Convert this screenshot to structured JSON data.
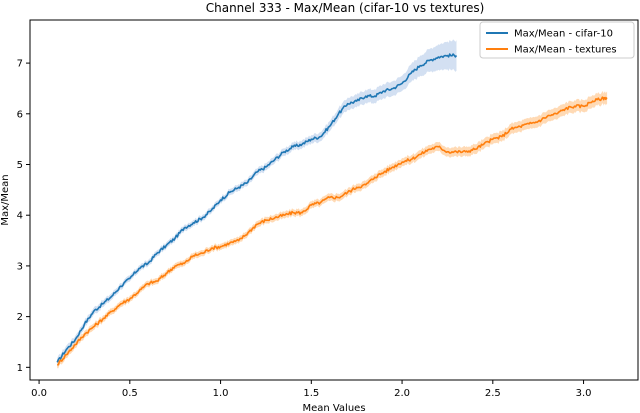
{
  "chart_data": {
    "type": "line",
    "title": "Channel 333 - Max/Mean (cifar-10 vs textures)",
    "xlabel": "Mean Values",
    "ylabel": "Max/Mean",
    "xlim": [
      -0.05,
      3.3
    ],
    "ylim": [
      0.75,
      7.85
    ],
    "xticks": [
      "0.0",
      "0.5",
      "1.0",
      "1.5",
      "2.0",
      "2.5",
      "3.0"
    ],
    "xtick_values": [
      0.0,
      0.5,
      1.0,
      1.5,
      2.0,
      2.5,
      3.0
    ],
    "yticks": [
      "1",
      "2",
      "3",
      "4",
      "5",
      "6",
      "7"
    ],
    "ytick_values": [
      1,
      2,
      3,
      4,
      5,
      6,
      7
    ],
    "grid": false,
    "legend_position": "top-right",
    "series": [
      {
        "name": "Max/Mean - cifar-10",
        "color": "#1f77b4",
        "band_color": "#aec7e8",
        "points": [
          [
            0.1,
            1.1
          ],
          [
            0.15,
            1.35
          ],
          [
            0.2,
            1.55
          ],
          [
            0.25,
            1.85
          ],
          [
            0.3,
            2.1
          ],
          [
            0.35,
            2.25
          ],
          [
            0.4,
            2.4
          ],
          [
            0.45,
            2.6
          ],
          [
            0.5,
            2.75
          ],
          [
            0.55,
            2.95
          ],
          [
            0.6,
            3.05
          ],
          [
            0.65,
            3.25
          ],
          [
            0.7,
            3.4
          ],
          [
            0.75,
            3.55
          ],
          [
            0.8,
            3.75
          ],
          [
            0.85,
            3.85
          ],
          [
            0.9,
            3.95
          ],
          [
            0.95,
            4.1
          ],
          [
            1.0,
            4.3
          ],
          [
            1.05,
            4.45
          ],
          [
            1.1,
            4.55
          ],
          [
            1.15,
            4.65
          ],
          [
            1.2,
            4.85
          ],
          [
            1.25,
            4.95
          ],
          [
            1.3,
            5.1
          ],
          [
            1.35,
            5.25
          ],
          [
            1.4,
            5.35
          ],
          [
            1.45,
            5.4
          ],
          [
            1.5,
            5.5
          ],
          [
            1.55,
            5.55
          ],
          [
            1.6,
            5.75
          ],
          [
            1.65,
            6.0
          ],
          [
            1.7,
            6.2
          ],
          [
            1.75,
            6.25
          ],
          [
            1.8,
            6.35
          ],
          [
            1.85,
            6.35
          ],
          [
            1.9,
            6.45
          ],
          [
            1.95,
            6.5
          ],
          [
            2.0,
            6.6
          ],
          [
            2.05,
            6.8
          ],
          [
            2.1,
            6.95
          ],
          [
            2.15,
            7.05
          ],
          [
            2.2,
            7.12
          ],
          [
            2.25,
            7.15
          ],
          [
            2.3,
            7.15
          ]
        ],
        "band": [
          [
            0.1,
            0.08
          ],
          [
            0.5,
            0.06
          ],
          [
            1.0,
            0.06
          ],
          [
            1.5,
            0.08
          ],
          [
            1.7,
            0.12
          ],
          [
            1.9,
            0.14
          ],
          [
            2.0,
            0.15
          ],
          [
            2.1,
            0.2
          ],
          [
            2.2,
            0.25
          ],
          [
            2.3,
            0.3
          ]
        ]
      },
      {
        "name": "Max/Mean - textures",
        "color": "#ff7f0e",
        "band_color": "#ffbb78",
        "points": [
          [
            0.1,
            1.05
          ],
          [
            0.15,
            1.25
          ],
          [
            0.2,
            1.45
          ],
          [
            0.25,
            1.65
          ],
          [
            0.3,
            1.8
          ],
          [
            0.35,
            1.95
          ],
          [
            0.4,
            2.1
          ],
          [
            0.45,
            2.25
          ],
          [
            0.5,
            2.35
          ],
          [
            0.55,
            2.5
          ],
          [
            0.6,
            2.65
          ],
          [
            0.65,
            2.7
          ],
          [
            0.7,
            2.85
          ],
          [
            0.75,
            3.0
          ],
          [
            0.8,
            3.05
          ],
          [
            0.85,
            3.2
          ],
          [
            0.9,
            3.25
          ],
          [
            0.95,
            3.35
          ],
          [
            1.0,
            3.38
          ],
          [
            1.05,
            3.45
          ],
          [
            1.1,
            3.5
          ],
          [
            1.15,
            3.65
          ],
          [
            1.2,
            3.82
          ],
          [
            1.25,
            3.9
          ],
          [
            1.3,
            3.95
          ],
          [
            1.35,
            4.0
          ],
          [
            1.4,
            4.05
          ],
          [
            1.45,
            4.05
          ],
          [
            1.5,
            4.2
          ],
          [
            1.55,
            4.25
          ],
          [
            1.6,
            4.35
          ],
          [
            1.65,
            4.35
          ],
          [
            1.7,
            4.45
          ],
          [
            1.75,
            4.55
          ],
          [
            1.8,
            4.6
          ],
          [
            1.85,
            4.75
          ],
          [
            1.9,
            4.85
          ],
          [
            1.95,
            4.95
          ],
          [
            2.0,
            5.05
          ],
          [
            2.05,
            5.1
          ],
          [
            2.1,
            5.2
          ],
          [
            2.15,
            5.3
          ],
          [
            2.2,
            5.35
          ],
          [
            2.25,
            5.25
          ],
          [
            2.3,
            5.25
          ],
          [
            2.35,
            5.25
          ],
          [
            2.4,
            5.3
          ],
          [
            2.45,
            5.4
          ],
          [
            2.5,
            5.5
          ],
          [
            2.55,
            5.55
          ],
          [
            2.6,
            5.7
          ],
          [
            2.65,
            5.75
          ],
          [
            2.7,
            5.8
          ],
          [
            2.75,
            5.85
          ],
          [
            2.8,
            5.95
          ],
          [
            2.85,
            6.0
          ],
          [
            2.9,
            6.1
          ],
          [
            2.95,
            6.15
          ],
          [
            3.0,
            6.15
          ],
          [
            3.05,
            6.25
          ],
          [
            3.1,
            6.3
          ],
          [
            3.13,
            6.32
          ]
        ],
        "band": [
          [
            0.1,
            0.07
          ],
          [
            0.5,
            0.06
          ],
          [
            1.0,
            0.06
          ],
          [
            1.5,
            0.07
          ],
          [
            2.0,
            0.08
          ],
          [
            2.5,
            0.1
          ],
          [
            3.0,
            0.12
          ],
          [
            3.13,
            0.12
          ]
        ]
      }
    ]
  }
}
